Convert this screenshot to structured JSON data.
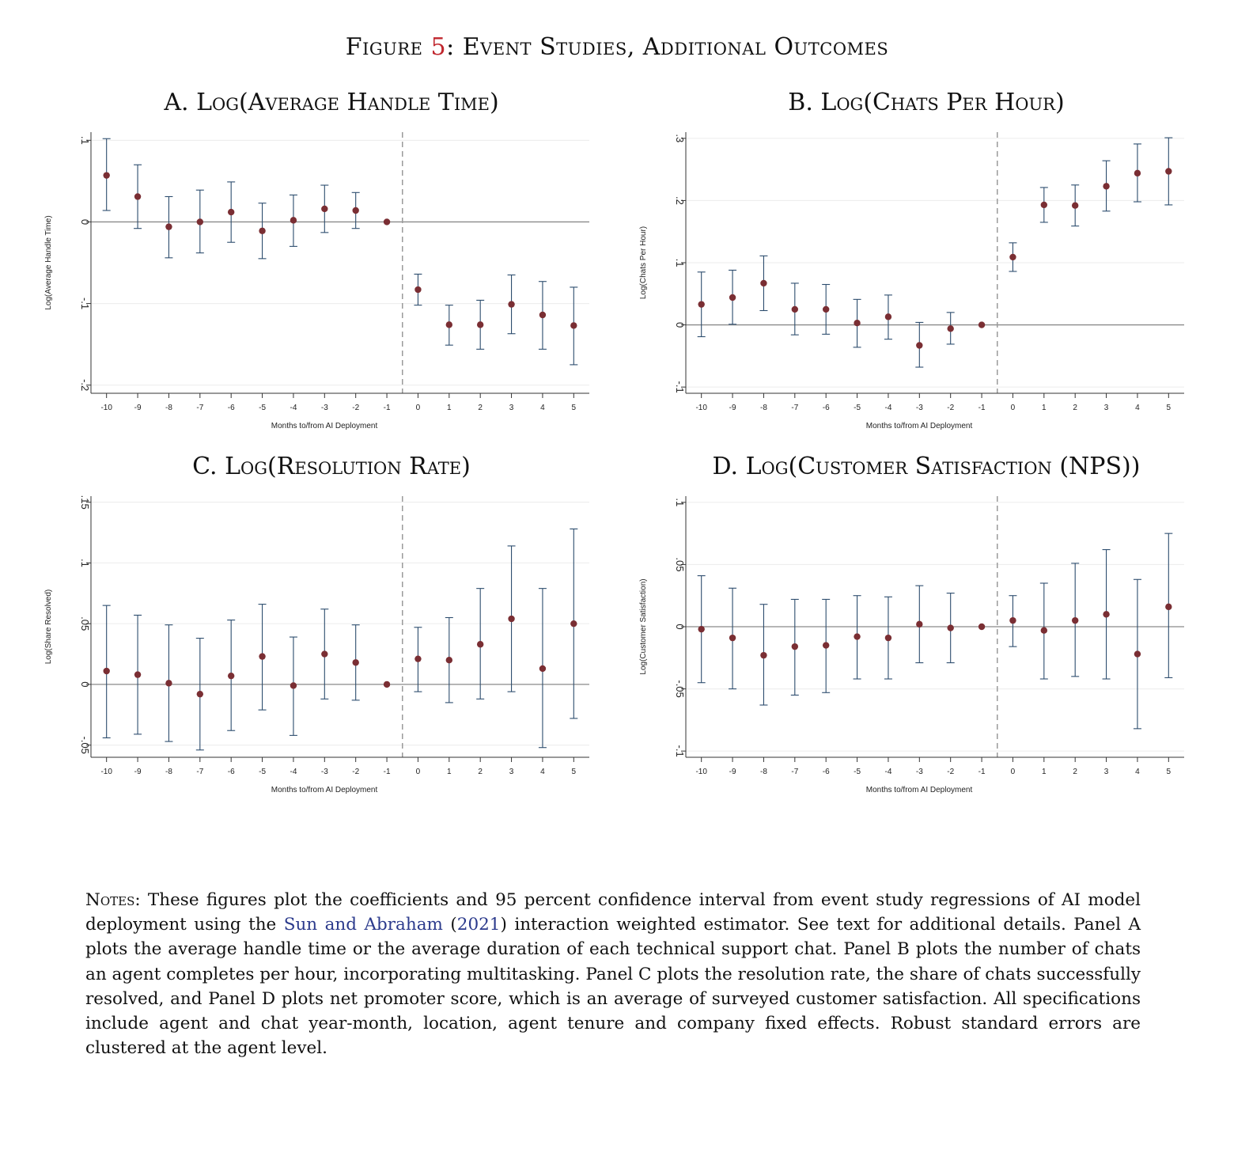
{
  "figure": {
    "label": "Figure",
    "number": "5",
    "colon": ":",
    "title": "Event Studies, Additional Outcomes"
  },
  "colors": {
    "point": "#7a2e33",
    "ci": "#2d4d6e",
    "zero_line": "#8a8a8a",
    "event_line": "#9a9a9a",
    "grid": "#ececec",
    "axis": "#333333",
    "fig_number": "#c0262d",
    "citation": "#2b3a8c"
  },
  "chart_data": [
    {
      "id": "A",
      "type": "scatter",
      "title": "A. Log(Average Handle Time)",
      "xlabel": "Months to/from AI Deployment",
      "ylabel": "Log(Average Handle Time)",
      "x": [
        -10,
        -9,
        -8,
        -7,
        -6,
        -5,
        -4,
        -3,
        -2,
        -1,
        0,
        1,
        2,
        3,
        4,
        5
      ],
      "y": [
        0.057,
        0.031,
        -0.006,
        0.0,
        0.012,
        -0.011,
        0.002,
        0.016,
        0.014,
        0.0,
        -0.083,
        -0.126,
        -0.126,
        -0.101,
        -0.114,
        -0.127
      ],
      "ci_low": [
        0.014,
        -0.008,
        -0.044,
        -0.038,
        -0.025,
        -0.045,
        -0.03,
        -0.013,
        -0.008,
        0.0,
        -0.102,
        -0.151,
        -0.156,
        -0.137,
        -0.156,
        -0.175
      ],
      "ci_high": [
        0.102,
        0.07,
        0.031,
        0.039,
        0.049,
        0.023,
        0.033,
        0.045,
        0.036,
        0.0,
        -0.064,
        -0.102,
        -0.096,
        -0.065,
        -0.073,
        -0.08
      ],
      "ylim": [
        -0.21,
        0.11
      ],
      "yticks": [
        -0.2,
        -0.1,
        0,
        0.1
      ],
      "ytick_labels": [
        "-.2",
        "-.1",
        "0",
        ".1"
      ],
      "xticks": [
        -10,
        -9,
        -8,
        -7,
        -6,
        -5,
        -4,
        -3,
        -2,
        -1,
        0,
        1,
        2,
        3,
        4,
        5
      ],
      "xtick_labels": [
        "-10",
        "-9",
        "-8",
        "-7",
        "-6",
        "-5",
        "-4",
        "-3",
        "-2",
        "-1",
        "0",
        "1",
        "2",
        "3",
        "4",
        "5"
      ],
      "event_line_x": -0.5,
      "grid": true
    },
    {
      "id": "B",
      "type": "scatter",
      "title": "B. Log(Chats Per Hour)",
      "xlabel": "Months to/from AI Deployment",
      "ylabel": "Log(Chats Per Hour)",
      "x": [
        -10,
        -9,
        -8,
        -7,
        -6,
        -5,
        -4,
        -3,
        -2,
        -1,
        0,
        1,
        2,
        3,
        4,
        5
      ],
      "y": [
        0.033,
        0.044,
        0.067,
        0.025,
        0.025,
        0.003,
        0.013,
        -0.033,
        -0.006,
        0.0,
        0.109,
        0.193,
        0.192,
        0.223,
        0.244,
        0.247
      ],
      "ci_low": [
        -0.019,
        0.001,
        0.023,
        -0.016,
        -0.015,
        -0.036,
        -0.023,
        -0.068,
        -0.031,
        0.0,
        0.086,
        0.165,
        0.159,
        0.183,
        0.198,
        0.193
      ],
      "ci_high": [
        0.085,
        0.088,
        0.111,
        0.067,
        0.065,
        0.041,
        0.048,
        0.004,
        0.02,
        0.0,
        0.132,
        0.221,
        0.225,
        0.264,
        0.291,
        0.301
      ],
      "ylim": [
        -0.11,
        0.31
      ],
      "yticks": [
        -0.1,
        0,
        0.1,
        0.2,
        0.3
      ],
      "ytick_labels": [
        "-.1",
        "0",
        ".1",
        ".2",
        ".3"
      ],
      "xticks": [
        -10,
        -9,
        -8,
        -7,
        -6,
        -5,
        -4,
        -3,
        -2,
        -1,
        0,
        1,
        2,
        3,
        4,
        5
      ],
      "xtick_labels": [
        "-10",
        "-9",
        "-8",
        "-7",
        "-6",
        "-5",
        "-4",
        "-3",
        "-2",
        "-1",
        "0",
        "1",
        "2",
        "3",
        "4",
        "5"
      ],
      "event_line_x": -0.5,
      "grid": true
    },
    {
      "id": "C",
      "type": "scatter",
      "title": "C. Log(Resolution Rate)",
      "xlabel": "Months to/from AI Deployment",
      "ylabel": "Log(Share Resolved)",
      "x": [
        -10,
        -9,
        -8,
        -7,
        -6,
        -5,
        -4,
        -3,
        -2,
        -1,
        0,
        1,
        2,
        3,
        4,
        5
      ],
      "y": [
        0.011,
        0.008,
        0.001,
        -0.008,
        0.007,
        0.023,
        -0.001,
        0.025,
        0.018,
        0.0,
        0.021,
        0.02,
        0.033,
        0.054,
        0.013,
        0.05
      ],
      "ci_low": [
        -0.044,
        -0.041,
        -0.047,
        -0.054,
        -0.038,
        -0.021,
        -0.042,
        -0.012,
        -0.013,
        0.0,
        -0.006,
        -0.015,
        -0.012,
        -0.006,
        -0.052,
        -0.028
      ],
      "ci_high": [
        0.065,
        0.057,
        0.049,
        0.038,
        0.053,
        0.066,
        0.039,
        0.062,
        0.049,
        0.0,
        0.047,
        0.055,
        0.079,
        0.114,
        0.079,
        0.128
      ],
      "ylim": [
        -0.06,
        0.155
      ],
      "yticks": [
        -0.05,
        0,
        0.05,
        0.1,
        0.15
      ],
      "ytick_labels": [
        "-.05",
        "0",
        ".05",
        ".1",
        ".15"
      ],
      "xticks": [
        -10,
        -9,
        -8,
        -7,
        -6,
        -5,
        -4,
        -3,
        -2,
        -1,
        0,
        1,
        2,
        3,
        4,
        5
      ],
      "xtick_labels": [
        "-10",
        "-9",
        "-8",
        "-7",
        "-6",
        "-5",
        "-4",
        "-3",
        "-2",
        "-1",
        "0",
        "1",
        "2",
        "3",
        "4",
        "5"
      ],
      "event_line_x": -0.5,
      "grid": true
    },
    {
      "id": "D",
      "type": "scatter",
      "title": "D. Log(Customer Satisfaction (NPS))",
      "xlabel": "Months to/from AI Deployment",
      "ylabel": "Log(Customer Satisfaction)",
      "x": [
        -10,
        -9,
        -8,
        -7,
        -6,
        -5,
        -4,
        -3,
        -2,
        -1,
        0,
        1,
        2,
        3,
        4,
        5
      ],
      "y": [
        -0.002,
        -0.009,
        -0.023,
        -0.016,
        -0.015,
        -0.008,
        -0.009,
        0.002,
        -0.001,
        0.0,
        0.005,
        -0.003,
        0.005,
        0.01,
        -0.022,
        0.016
      ],
      "ci_low": [
        -0.045,
        -0.05,
        -0.063,
        -0.055,
        -0.053,
        -0.042,
        -0.042,
        -0.029,
        -0.029,
        0.0,
        -0.016,
        -0.042,
        -0.04,
        -0.042,
        -0.082,
        -0.041
      ],
      "ci_high": [
        0.041,
        0.031,
        0.018,
        0.022,
        0.022,
        0.025,
        0.024,
        0.033,
        0.027,
        0.0,
        0.025,
        0.035,
        0.051,
        0.062,
        0.038,
        0.075
      ],
      "ylim": [
        -0.105,
        0.105
      ],
      "yticks": [
        -0.1,
        -0.05,
        0,
        0.05,
        0.1
      ],
      "ytick_labels": [
        "-.1",
        "-.05",
        "0",
        ".05",
        ".1"
      ],
      "xticks": [
        -10,
        -9,
        -8,
        -7,
        -6,
        -5,
        -4,
        -3,
        -2,
        -1,
        0,
        1,
        2,
        3,
        4,
        5
      ],
      "xtick_labels": [
        "-10",
        "-9",
        "-8",
        "-7",
        "-6",
        "-5",
        "-4",
        "-3",
        "-2",
        "-1",
        "0",
        "1",
        "2",
        "3",
        "4",
        "5"
      ],
      "event_line_x": -0.5,
      "grid": true
    }
  ],
  "notes": {
    "label": "Notes:",
    "text_before_citation": " These figures plot the coefficients and 95 percent confidence interval from event study regressions of AI model deployment using the ",
    "citation_authors": "Sun and Abraham",
    "citation_open": " (",
    "citation_year": "2021",
    "citation_close": ")",
    "text_after_citation": " interaction weighted estimator. See text for additional details. Panel A plots the average handle time or the average duration of each technical support chat.  Panel B plots the number of chats an agent completes per hour, incorporating multitasking.  Panel C plots the resolution rate, the share of chats successfully resolved, and Panel D plots net promoter score, which is an average of surveyed customer satisfaction. All specifications include agent and chat year-month, location, agent tenure and company fixed effects. Robust standard errors are clustered at the agent level."
  }
}
